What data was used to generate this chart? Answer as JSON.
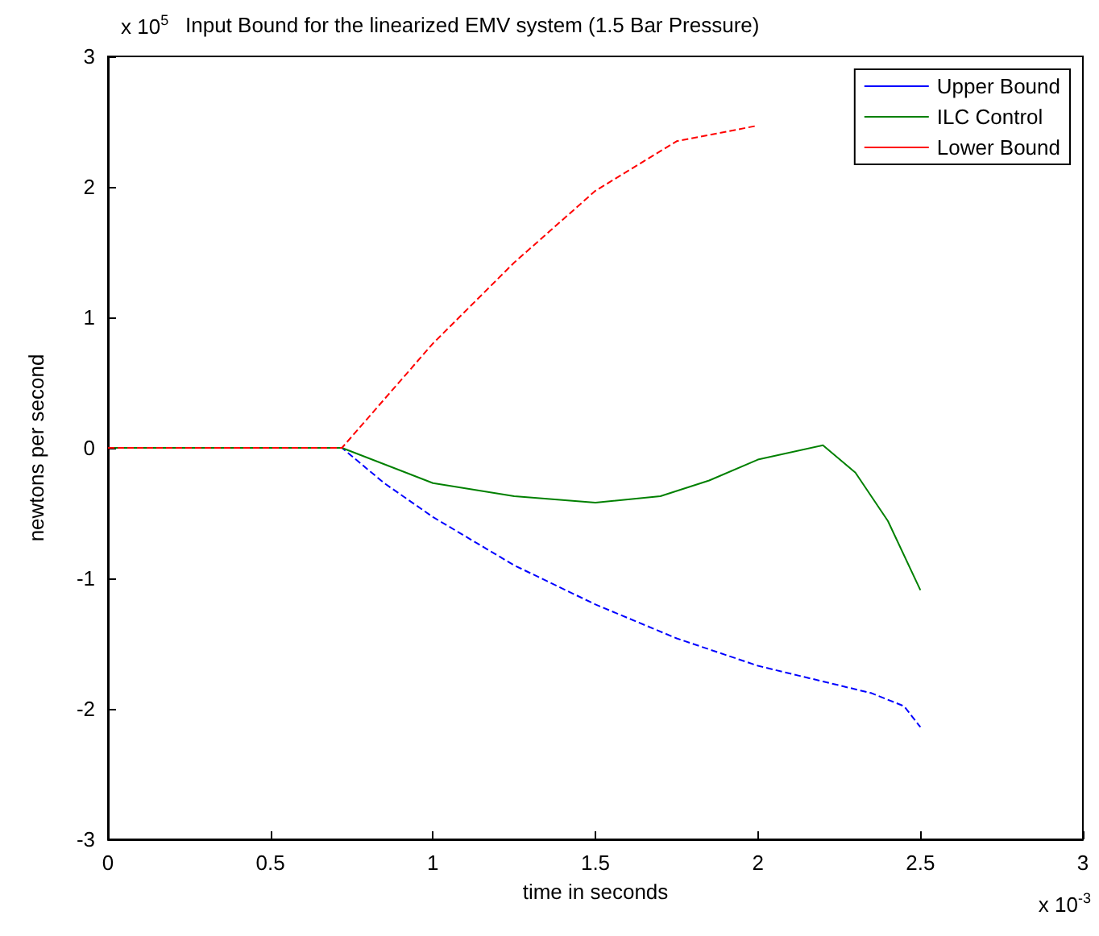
{
  "chart_data": {
    "type": "line",
    "title": "Input Bound for the linearized EMV system (1.5 Bar Pressure)",
    "xlabel": "time in seconds",
    "ylabel": "newtons per second",
    "annotations": [
      "x 10$^{5}$",
      "x 10$^{-3}$"
    ],
    "xlim": [
      0,
      3
    ],
    "xticks": [
      0,
      0.5,
      1,
      1.5,
      2,
      2.5,
      3
    ],
    "ylim": [
      -3,
      3
    ],
    "yticks": [
      -3,
      -2,
      -1,
      0,
      1,
      2,
      3
    ],
    "grid": false,
    "legend": "top right",
    "marker": "none",
    "series": [
      {
        "name": "Upper Bound",
        "color": "#0000ff",
        "line_style": "dashed",
        "x": [
          0,
          0.72,
          0.85,
          1,
          1.25,
          1.5,
          1.75,
          2,
          2.2,
          2.35,
          2.45,
          2.5
        ],
        "values": [
          0,
          0,
          -0.27,
          -0.53,
          -0.9,
          -1.2,
          -1.46,
          -1.67,
          -1.79,
          -1.88,
          -1.98,
          -2.14
        ]
      },
      {
        "name": "ILC Control",
        "color": "#008000",
        "line_style": "solid",
        "x": [
          0,
          0.72,
          1,
          1.25,
          1.5,
          1.7,
          1.85,
          2,
          2.2,
          2.3,
          2.4,
          2.5
        ],
        "values": [
          0,
          0,
          -0.27,
          -0.37,
          -0.42,
          -0.37,
          -0.25,
          -0.09,
          0.02,
          -0.19,
          -0.56,
          -1.09
        ]
      },
      {
        "name": "Lower Bound",
        "color": "#ff0000",
        "line_style": "dashed",
        "x": [
          0,
          0.72,
          1,
          1.25,
          1.5,
          1.75,
          2
        ],
        "values": [
          0,
          0,
          0.8,
          1.42,
          1.97,
          2.35,
          2.47
        ]
      }
    ]
  }
}
